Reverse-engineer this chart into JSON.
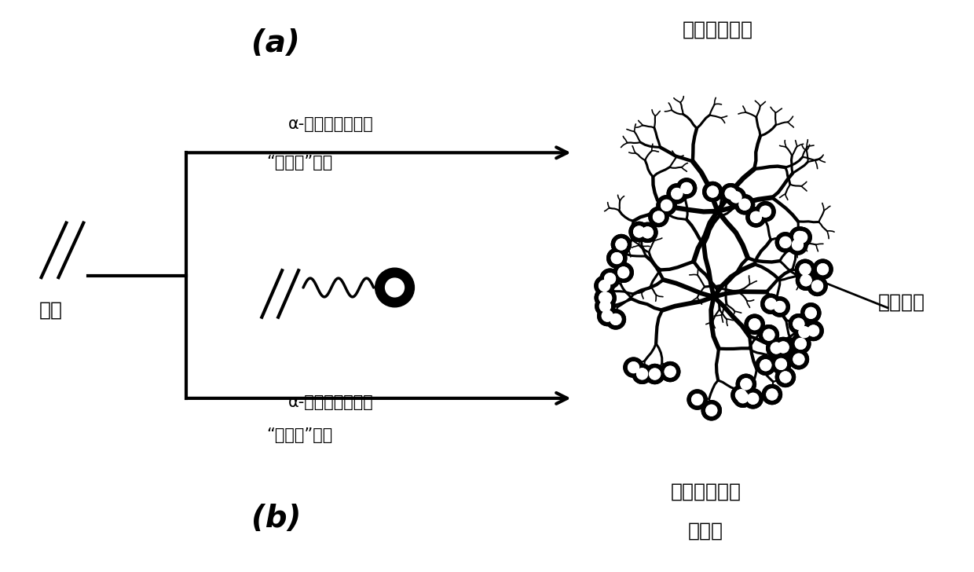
{
  "background_color": "#ffffff",
  "label_a": "(a)",
  "label_b": "(b)",
  "text_ethylene": "乙烯",
  "text_top_catalyst": "α-二亚胺钯催化剂",
  "text_top_process": "“链移走”均聚",
  "text_bottom_catalyst": "α-二亚胺钯催化剂",
  "text_bottom_process": "“链移走”共聚",
  "text_top_product": "超支化聚乙烯",
  "text_bottom_product1": "超支化聚乙烯",
  "text_bottom_product2": "共聚物",
  "text_functional": "功能基团"
}
